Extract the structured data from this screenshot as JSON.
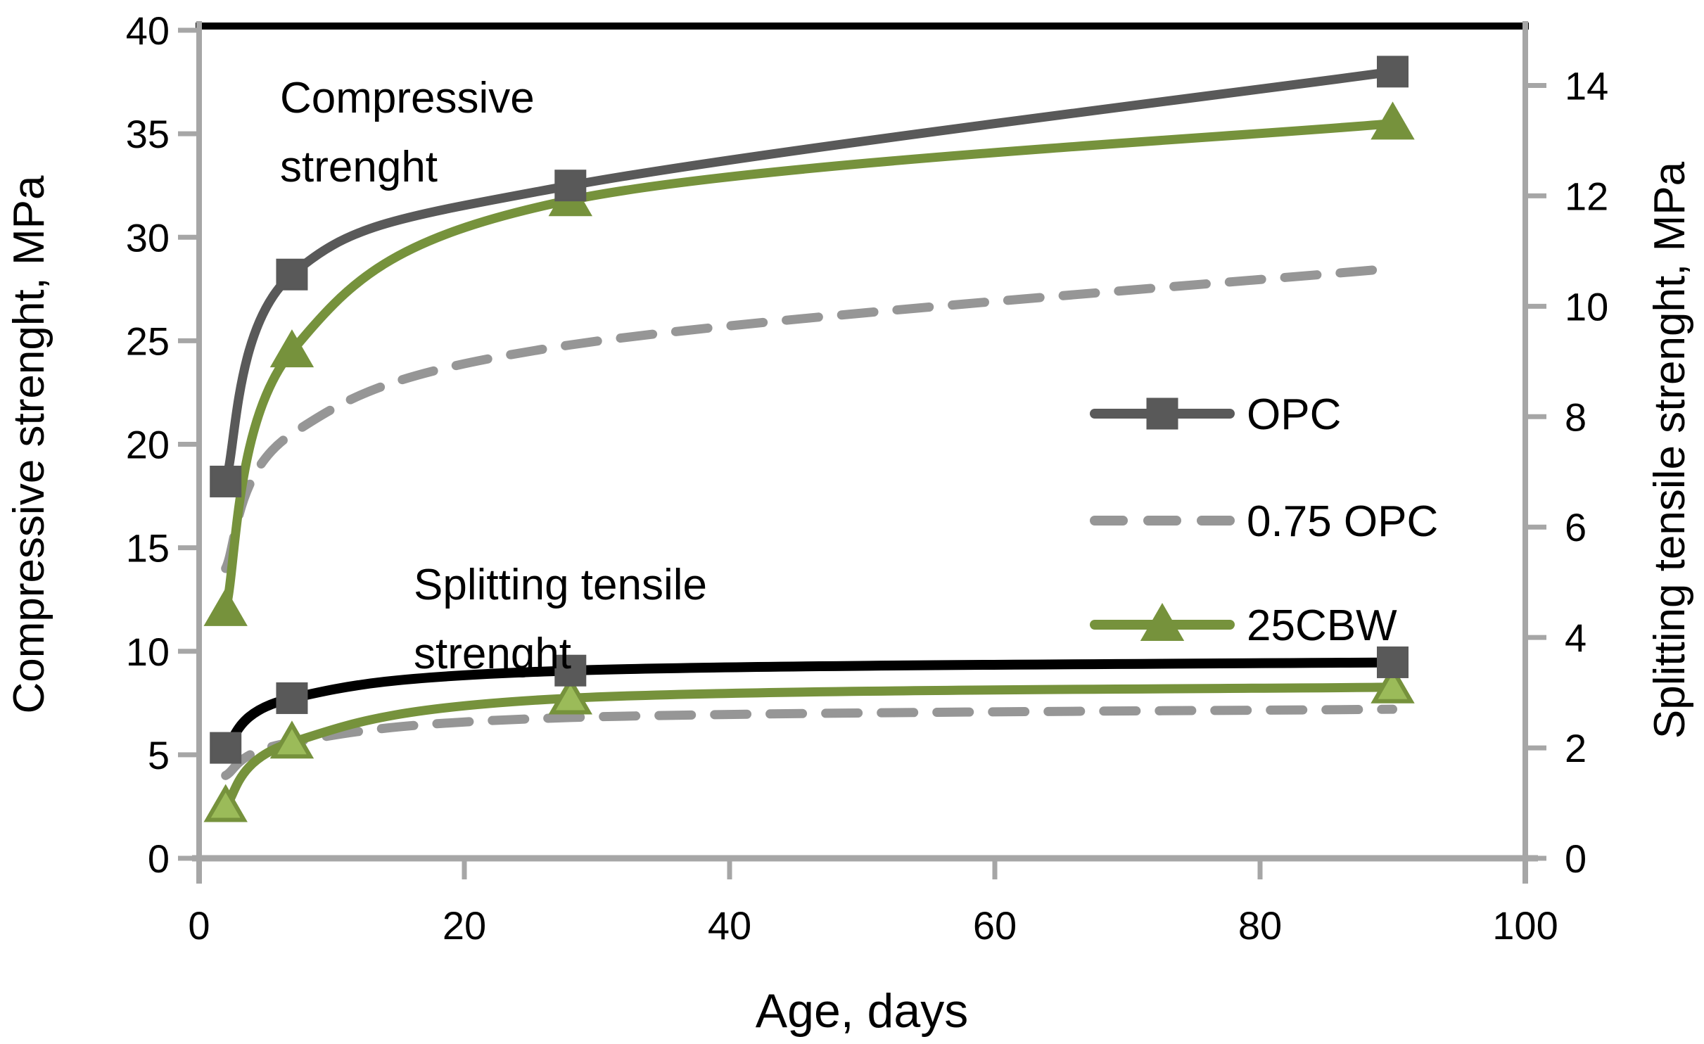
{
  "figure": {
    "x_title": "Age, days",
    "y_left_title": "Compressive strenght, MPa",
    "y_right_title": "Splitting tensile strenght, MPa"
  },
  "annotations": {
    "compressive": {
      "line1": "Compressive",
      "line2": "strenght"
    },
    "splitting": {
      "line1": "Splitting tensile",
      "line2": "strenght"
    }
  },
  "legend": {
    "items": [
      {
        "label": "OPC",
        "color": "#595959",
        "dash": false,
        "marker": "square",
        "marker_fill": "#595959",
        "marker_stroke": "#595959"
      },
      {
        "label": "0.75 OPC",
        "color": "#969696",
        "dash": true,
        "marker": "none",
        "marker_fill": "",
        "marker_stroke": ""
      },
      {
        "label": "25CBW",
        "color": "#76923C",
        "dash": false,
        "marker": "triangle",
        "marker_fill": "#76923C",
        "marker_stroke": "#76923C"
      }
    ]
  },
  "colors": {
    "axis_line": "#A6A6A6",
    "plot_top_border": "#000000",
    "opc_compressive": "#595959",
    "opc_splitting": "#000000",
    "dashed_gray": "#969696",
    "green": "#76923C",
    "green_light_fill": "#9BBB59",
    "square_marker": "#595959"
  },
  "chart_data": {
    "type": "line",
    "title": "",
    "xlabel": "Age, days",
    "x_axis": {
      "min": 0,
      "max": 100,
      "tick_step": 20
    },
    "y_left": {
      "label": "Compressive strenght, MPa",
      "min": 0,
      "max": 40,
      "tick_step": 5,
      "max_labeled_tick": 40
    },
    "y_right": {
      "label": "Splitting tensile strenght, MPa",
      "min": 0,
      "max": 15,
      "tick_step": 2,
      "max_labeled_tick": 14
    },
    "x_ages_days": [
      2,
      7,
      28,
      90
    ],
    "series": [
      {
        "name": "0.75 OPC compressive strength",
        "legend": "0.75 OPC",
        "axis": "left",
        "color": "#969696",
        "style": "dashed",
        "line_width": 13,
        "marker": "none",
        "values": [
          14.0,
          20.5,
          24.8,
          28.5
        ]
      },
      {
        "name": "25CBW compressive strength",
        "legend": "25CBW",
        "axis": "left",
        "color": "#76923C",
        "style": "solid",
        "line_width": 13,
        "marker": "triangle",
        "marker_fill": "#76923C",
        "marker_stroke": "#76923C",
        "values": [
          12.0,
          24.5,
          31.8,
          35.5
        ]
      },
      {
        "name": "OPC compressive strength",
        "legend": "OPC",
        "axis": "left",
        "color": "#595959",
        "style": "solid",
        "line_width": 13,
        "marker": "square",
        "marker_fill": "#595959",
        "marker_stroke": "#595959",
        "values": [
          18.2,
          28.2,
          32.5,
          38.0
        ]
      },
      {
        "name": "0.75 OPC splitting tensile strength",
        "legend": "0.75 OPC",
        "axis": "right",
        "color": "#969696",
        "style": "dashed",
        "line_width": 13,
        "marker": "none",
        "values": [
          1.5,
          2.1,
          2.55,
          2.7
        ]
      },
      {
        "name": "25CBW splitting tensile strength",
        "legend": "25CBW",
        "axis": "right",
        "color": "#76923C",
        "style": "solid",
        "line_width": 13,
        "marker": "triangle",
        "marker_fill": "#9BBB59",
        "marker_stroke": "#76923C",
        "values": [
          0.95,
          2.1,
          2.9,
          3.1
        ]
      },
      {
        "name": "OPC splitting tensile strength",
        "legend": "OPC",
        "axis": "right",
        "color": "#000000",
        "style": "solid",
        "line_width": 14,
        "marker": "square",
        "marker_fill": "#595959",
        "marker_stroke": "#595959",
        "values": [
          2.0,
          2.9,
          3.4,
          3.55
        ]
      }
    ]
  }
}
